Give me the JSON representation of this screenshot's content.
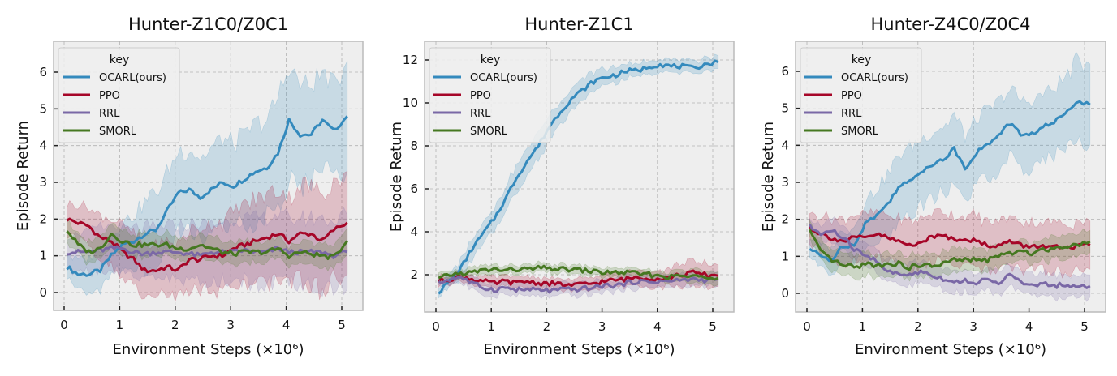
{
  "figure": {
    "legend_title": "key",
    "series_names": [
      "OCARL(ours)",
      "PPO",
      "RRL",
      "SMORL"
    ],
    "series_colors": [
      "#348abd",
      "#a60628",
      "#7a68a6",
      "#467821"
    ],
    "xlabel": "Environment Steps (×10⁶)",
    "ylabel": "Episode Return"
  },
  "chart_data": [
    {
      "type": "line",
      "title": "Hunter-Z1C0/Z0C1",
      "xlabel": "Environment Steps (×10^6)",
      "ylabel": "Episode Return",
      "xlim": [
        -0.2,
        5.35
      ],
      "ylim": [
        -0.5,
        6.8
      ],
      "xticks": [
        0,
        1,
        2,
        3,
        4,
        5
      ],
      "yticks": [
        0,
        1,
        2,
        3,
        4,
        5,
        6
      ],
      "grid": true,
      "legend_position": "upper left",
      "x": [
        0.05,
        0.25,
        0.45,
        0.65,
        0.85,
        1.05,
        1.25,
        1.45,
        1.65,
        1.85,
        2.05,
        2.25,
        2.45,
        2.65,
        2.85,
        3.05,
        3.25,
        3.45,
        3.65,
        3.85,
        4.05,
        4.25,
        4.45,
        4.65,
        4.85,
        5.1
      ],
      "series": [
        {
          "name": "OCARL(ours)",
          "values": [
            0.7,
            0.5,
            0.5,
            0.6,
            1.0,
            1.3,
            1.4,
            1.6,
            1.7,
            2.2,
            2.7,
            2.8,
            2.6,
            2.8,
            3.0,
            2.9,
            3.1,
            3.3,
            3.4,
            3.8,
            4.7,
            4.3,
            4.3,
            4.7,
            4.4,
            4.8
          ],
          "band": [
            0.35,
            0.4,
            0.45,
            0.5,
            0.5,
            0.6,
            0.7,
            0.9,
            1.0,
            1.0,
            1.1,
            1.1,
            1.1,
            1.1,
            1.2,
            1.2,
            1.2,
            1.3,
            1.3,
            1.5,
            1.5,
            1.4,
            1.3,
            1.3,
            1.2,
            1.5
          ]
        },
        {
          "name": "PPO",
          "values": [
            2.0,
            1.9,
            1.8,
            1.5,
            1.4,
            1.1,
            0.9,
            0.6,
            0.6,
            0.7,
            0.6,
            0.9,
            0.9,
            1.0,
            1.0,
            1.2,
            1.3,
            1.4,
            1.5,
            1.6,
            1.4,
            1.6,
            1.6,
            1.4,
            1.7,
            1.9
          ],
          "band": [
            0.4,
            0.5,
            0.5,
            0.6,
            0.6,
            0.7,
            0.7,
            0.7,
            0.7,
            0.7,
            0.7,
            0.8,
            0.8,
            0.9,
            0.9,
            1.0,
            1.1,
            1.1,
            1.2,
            1.2,
            1.2,
            1.3,
            1.3,
            1.3,
            1.3,
            1.4
          ]
        },
        {
          "name": "RRL",
          "values": [
            1.1,
            1.1,
            1.1,
            1.15,
            1.2,
            1.2,
            1.1,
            1.05,
            1.1,
            1.1,
            1.1,
            1.05,
            1.0,
            1.1,
            1.1,
            1.1,
            1.15,
            1.1,
            1.1,
            1.2,
            1.1,
            1.1,
            1.1,
            1.1,
            1.0,
            1.1
          ],
          "band": [
            0.5,
            0.5,
            0.55,
            0.6,
            0.6,
            0.6,
            0.65,
            0.7,
            0.7,
            0.7,
            0.75,
            0.8,
            0.8,
            0.8,
            0.8,
            0.85,
            0.85,
            0.9,
            0.9,
            0.9,
            0.9,
            0.9,
            0.9,
            0.95,
            0.95,
            1.0
          ]
        },
        {
          "name": "SMORL",
          "values": [
            1.7,
            1.3,
            1.1,
            1.2,
            1.6,
            1.4,
            1.3,
            1.3,
            1.3,
            1.3,
            1.2,
            1.2,
            1.3,
            1.2,
            1.1,
            1.05,
            1.1,
            1.1,
            1.1,
            1.2,
            1.0,
            1.1,
            1.05,
            1.0,
            0.95,
            1.4
          ],
          "band": [
            0.3,
            0.3,
            0.3,
            0.3,
            0.3,
            0.3,
            0.3,
            0.3,
            0.3,
            0.3,
            0.3,
            0.3,
            0.3,
            0.3,
            0.3,
            0.3,
            0.3,
            0.3,
            0.3,
            0.3,
            0.3,
            0.3,
            0.3,
            0.3,
            0.3,
            0.35
          ]
        }
      ]
    },
    {
      "type": "line",
      "title": "Hunter-Z1C1",
      "xlabel": "Environment Steps (×10^6)",
      "ylabel": "Episode Return",
      "xlim": [
        -0.2,
        5.35
      ],
      "ylim": [
        0.3,
        12.9
      ],
      "xticks": [
        0,
        1,
        2,
        3,
        4,
        5
      ],
      "yticks": [
        2,
        4,
        6,
        8,
        10,
        12
      ],
      "grid": true,
      "legend_position": "upper left",
      "x": [
        0.05,
        0.25,
        0.45,
        0.65,
        0.85,
        1.05,
        1.25,
        1.45,
        1.65,
        1.85,
        2.05,
        2.25,
        2.45,
        2.65,
        2.85,
        3.05,
        3.25,
        3.45,
        3.65,
        3.85,
        4.05,
        4.25,
        4.45,
        4.65,
        4.85,
        5.1
      ],
      "series": [
        {
          "name": "OCARL(ours)",
          "values": [
            1.2,
            1.7,
            2.3,
            3.2,
            3.9,
            4.6,
            5.5,
            6.5,
            7.3,
            8.0,
            8.9,
            9.6,
            10.2,
            10.6,
            11.0,
            11.2,
            11.3,
            11.5,
            11.5,
            11.7,
            11.8,
            11.7,
            11.7,
            11.6,
            11.8,
            11.9
          ],
          "band": [
            0.25,
            0.3,
            0.4,
            0.45,
            0.5,
            0.5,
            0.55,
            0.6,
            0.6,
            0.6,
            0.6,
            0.55,
            0.5,
            0.5,
            0.45,
            0.4,
            0.35,
            0.3,
            0.3,
            0.3,
            0.3,
            0.3,
            0.3,
            0.3,
            0.3,
            0.3
          ]
        },
        {
          "name": "PPO",
          "values": [
            1.7,
            1.8,
            1.9,
            1.8,
            1.7,
            1.6,
            1.7,
            1.6,
            1.7,
            1.6,
            1.6,
            1.55,
            1.5,
            1.55,
            1.6,
            1.7,
            1.75,
            1.8,
            1.9,
            1.85,
            1.8,
            1.9,
            2.0,
            2.1,
            2.0,
            1.95
          ],
          "band": [
            0.2,
            0.2,
            0.2,
            0.2,
            0.25,
            0.25,
            0.25,
            0.25,
            0.25,
            0.25,
            0.25,
            0.25,
            0.25,
            0.3,
            0.3,
            0.3,
            0.3,
            0.35,
            0.35,
            0.4,
            0.4,
            0.45,
            0.5,
            0.6,
            0.55,
            0.5
          ]
        },
        {
          "name": "RRL",
          "values": [
            1.6,
            1.8,
            1.9,
            1.6,
            1.4,
            1.3,
            1.4,
            1.3,
            1.3,
            1.3,
            1.25,
            1.3,
            1.3,
            1.35,
            1.4,
            1.5,
            1.5,
            1.6,
            1.7,
            1.65,
            1.7,
            1.7,
            1.75,
            1.8,
            1.75,
            1.8
          ],
          "band": [
            0.2,
            0.2,
            0.25,
            0.3,
            0.3,
            0.3,
            0.3,
            0.3,
            0.3,
            0.3,
            0.3,
            0.3,
            0.3,
            0.3,
            0.3,
            0.3,
            0.3,
            0.3,
            0.3,
            0.3,
            0.3,
            0.3,
            0.3,
            0.3,
            0.3,
            0.3
          ]
        },
        {
          "name": "SMORL",
          "values": [
            1.8,
            2.0,
            2.05,
            2.1,
            2.2,
            2.25,
            2.2,
            2.25,
            2.25,
            2.3,
            2.3,
            2.25,
            2.25,
            2.2,
            2.15,
            2.1,
            2.1,
            2.1,
            2.05,
            2.0,
            1.95,
            1.9,
            1.95,
            1.9,
            1.95,
            1.85
          ],
          "band": [
            0.2,
            0.2,
            0.2,
            0.2,
            0.2,
            0.2,
            0.2,
            0.2,
            0.2,
            0.2,
            0.2,
            0.2,
            0.2,
            0.2,
            0.2,
            0.2,
            0.2,
            0.2,
            0.2,
            0.2,
            0.25,
            0.25,
            0.25,
            0.3,
            0.3,
            0.3
          ]
        }
      ]
    },
    {
      "type": "line",
      "title": "Hunter-Z4C0/Z0C4",
      "xlabel": "Environment Steps (×10^6)",
      "ylabel": "Episode Return",
      "xlim": [
        -0.2,
        5.35
      ],
      "ylim": [
        -0.5,
        6.8
      ],
      "xticks": [
        0,
        1,
        2,
        3,
        4,
        5
      ],
      "yticks": [
        0,
        1,
        2,
        3,
        4,
        5,
        6
      ],
      "grid": true,
      "legend_position": "upper left",
      "x": [
        0.05,
        0.25,
        0.45,
        0.65,
        0.85,
        1.05,
        1.25,
        1.45,
        1.65,
        1.85,
        2.05,
        2.25,
        2.45,
        2.65,
        2.85,
        3.05,
        3.25,
        3.45,
        3.65,
        3.85,
        4.05,
        4.25,
        4.45,
        4.65,
        4.85,
        5.1
      ],
      "series": [
        {
          "name": "OCARL(ours)",
          "values": [
            1.2,
            1.0,
            0.9,
            1.3,
            1.3,
            1.9,
            2.1,
            2.4,
            2.9,
            3.0,
            3.3,
            3.5,
            3.6,
            3.9,
            3.4,
            3.8,
            4.0,
            4.3,
            4.6,
            4.3,
            4.3,
            4.5,
            4.6,
            4.9,
            5.2,
            5.1
          ],
          "band": [
            0.3,
            0.3,
            0.35,
            0.4,
            0.5,
            0.6,
            0.7,
            0.8,
            0.85,
            0.9,
            0.9,
            0.9,
            0.9,
            0.9,
            0.9,
            0.9,
            0.9,
            0.9,
            0.9,
            0.9,
            0.9,
            0.9,
            0.9,
            0.95,
            1.1,
            1.1
          ]
        },
        {
          "name": "PPO",
          "values": [
            1.8,
            1.6,
            1.5,
            1.4,
            1.5,
            1.5,
            1.6,
            1.5,
            1.4,
            1.3,
            1.4,
            1.5,
            1.6,
            1.45,
            1.5,
            1.4,
            1.3,
            1.3,
            1.4,
            1.3,
            1.25,
            1.3,
            1.25,
            1.2,
            1.25,
            1.3
          ],
          "band": [
            0.4,
            0.5,
            0.55,
            0.6,
            0.6,
            0.6,
            0.6,
            0.6,
            0.6,
            0.65,
            0.65,
            0.65,
            0.65,
            0.65,
            0.65,
            0.65,
            0.65,
            0.65,
            0.65,
            0.65,
            0.65,
            0.65,
            0.65,
            0.65,
            0.65,
            0.65
          ]
        },
        {
          "name": "RRL",
          "values": [
            1.8,
            1.6,
            1.7,
            1.5,
            1.2,
            1.0,
            0.9,
            0.6,
            0.5,
            0.5,
            0.6,
            0.5,
            0.4,
            0.3,
            0.35,
            0.3,
            0.35,
            0.3,
            0.5,
            0.3,
            0.2,
            0.25,
            0.2,
            0.25,
            0.15,
            0.2
          ],
          "band": [
            0.2,
            0.25,
            0.3,
            0.3,
            0.3,
            0.3,
            0.3,
            0.3,
            0.3,
            0.3,
            0.3,
            0.3,
            0.3,
            0.3,
            0.3,
            0.3,
            0.3,
            0.3,
            0.3,
            0.3,
            0.3,
            0.3,
            0.3,
            0.3,
            0.3,
            0.3
          ]
        },
        {
          "name": "SMORL",
          "values": [
            1.7,
            1.1,
            0.9,
            0.75,
            0.7,
            0.8,
            0.75,
            0.8,
            0.8,
            0.7,
            0.75,
            0.75,
            0.8,
            0.9,
            0.9,
            0.9,
            0.9,
            1.0,
            1.1,
            1.1,
            1.1,
            1.2,
            1.2,
            1.3,
            1.3,
            1.4
          ],
          "band": [
            0.2,
            0.3,
            0.3,
            0.3,
            0.3,
            0.3,
            0.3,
            0.3,
            0.3,
            0.3,
            0.3,
            0.3,
            0.3,
            0.3,
            0.3,
            0.3,
            0.3,
            0.3,
            0.3,
            0.3,
            0.3,
            0.3,
            0.3,
            0.3,
            0.3,
            0.3
          ]
        }
      ]
    }
  ]
}
